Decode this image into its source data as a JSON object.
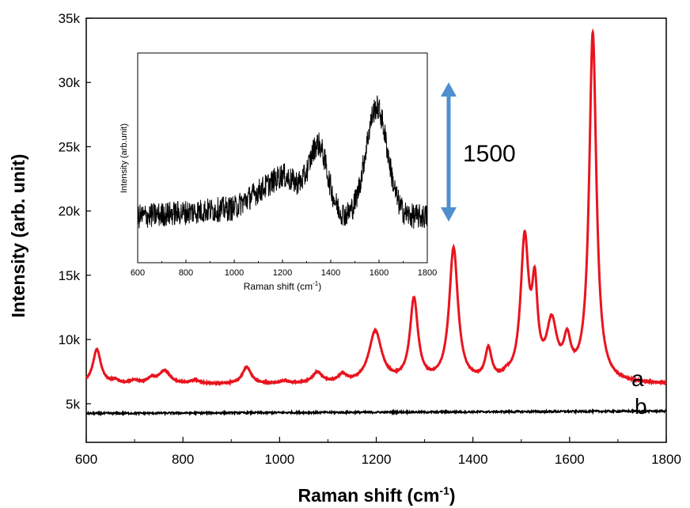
{
  "chart_data": [
    {
      "type": "line",
      "xlabel": "Raman shift (cm",
      "xlabel_sup": "-1",
      "xlabel_end": ")",
      "ylabel": "Intensity (arb. unit)",
      "xlim": [
        600,
        1800
      ],
      "ylim": [
        2000,
        35000
      ],
      "x_ticks": [
        600,
        800,
        1000,
        1200,
        1400,
        1600,
        1800
      ],
      "y_ticks": [
        5000,
        10000,
        15000,
        20000,
        25000,
        30000,
        35000
      ],
      "y_tick_labels": [
        "5k",
        "10k",
        "15k",
        "20k",
        "25k",
        "30k",
        "35k"
      ],
      "grid": false,
      "series": [
        {
          "name": "a",
          "color": "#e8141e",
          "baseline": 6500,
          "peaks": [
            {
              "x": 622,
              "height": 2700,
              "width": 10
            },
            {
              "x": 660,
              "height": 250,
              "width": 8
            },
            {
              "x": 700,
              "height": 250,
              "width": 10
            },
            {
              "x": 735,
              "height": 400,
              "width": 10
            },
            {
              "x": 762,
              "height": 1000,
              "width": 14
            },
            {
              "x": 825,
              "height": 250,
              "width": 12
            },
            {
              "x": 932,
              "height": 1300,
              "width": 11
            },
            {
              "x": 1010,
              "height": 200,
              "width": 10
            },
            {
              "x": 1078,
              "height": 850,
              "width": 12
            },
            {
              "x": 1130,
              "height": 600,
              "width": 10
            },
            {
              "x": 1198,
              "height": 4000,
              "width": 16
            },
            {
              "x": 1278,
              "height": 6400,
              "width": 10
            },
            {
              "x": 1360,
              "height": 10400,
              "width": 11
            },
            {
              "x": 1432,
              "height": 2400,
              "width": 8
            },
            {
              "x": 1470,
              "height": 300,
              "width": 8
            },
            {
              "x": 1507,
              "height": 10800,
              "width": 10
            },
            {
              "x": 1528,
              "height": 6300,
              "width": 7
            },
            {
              "x": 1563,
              "height": 4300,
              "width": 13
            },
            {
              "x": 1595,
              "height": 2700,
              "width": 9
            },
            {
              "x": 1648,
              "height": 27100,
              "width": 9
            }
          ]
        },
        {
          "name": "b",
          "color": "#000000",
          "baseline": 4250,
          "slope_per_cm": 0.15,
          "noise": 70
        }
      ]
    },
    {
      "type": "line",
      "inset": true,
      "xlabel": "Raman shift (cm",
      "xlabel_sup": "-1",
      "xlabel_end": ")",
      "ylabel": "Intensity (arb.unit)",
      "xlim": [
        600,
        1800
      ],
      "x_ticks": [
        600,
        800,
        1000,
        1200,
        1400,
        1600,
        1800
      ],
      "series": [
        {
          "color": "#000000",
          "baseline_points": [
            [
              600,
              0.22
            ],
            [
              1000,
              0.26
            ],
            [
              1200,
              0.42
            ],
            [
              1460,
              0.22
            ],
            [
              1800,
              0.22
            ]
          ],
          "peaks": [
            {
              "x": 1350,
              "height": 0.26,
              "width": 35
            },
            {
              "x": 1590,
              "height": 0.52,
              "width": 45
            }
          ],
          "noise": 0.06
        }
      ]
    }
  ],
  "annotation": {
    "label": "1500",
    "color": "#4f8fce"
  }
}
